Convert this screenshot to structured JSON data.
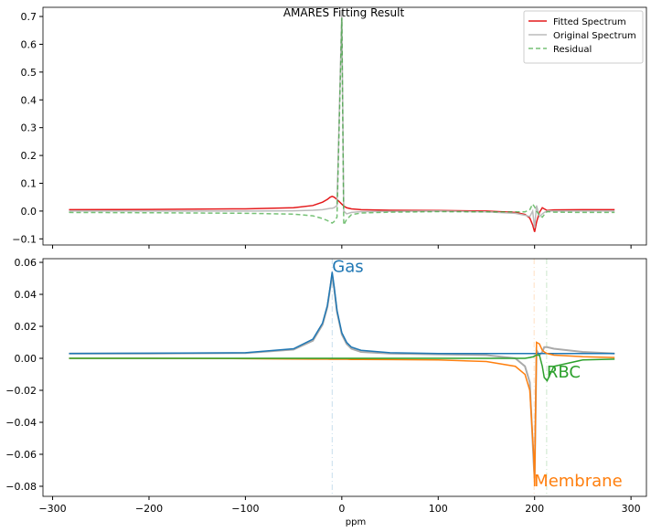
{
  "chart_data": [
    {
      "type": "line",
      "title": "AMARES Fitting Result",
      "x": [
        -283,
        -200,
        -100,
        -50,
        -30,
        -20,
        -15,
        -12,
        -10,
        -8,
        -5,
        0,
        2,
        5,
        10,
        20,
        50,
        100,
        150,
        180,
        190,
        195,
        198,
        200,
        202,
        205,
        208,
        210,
        213,
        220,
        250,
        283
      ],
      "series": [
        {
          "name": "Fitted Spectrum",
          "color": "#e41a1c",
          "style": "solid",
          "values": [
            0.005,
            0.006,
            0.008,
            0.012,
            0.02,
            0.032,
            0.042,
            0.05,
            0.053,
            0.05,
            0.042,
            0.025,
            0.018,
            0.012,
            0.008,
            0.005,
            0.003,
            0.002,
            0.0,
            -0.005,
            -0.012,
            -0.025,
            -0.05,
            -0.075,
            -0.04,
            -0.005,
            0.012,
            0.008,
            0.002,
            0.004,
            0.005,
            0.005
          ]
        },
        {
          "name": "Original Spectrum",
          "color": "#bbbbbb",
          "style": "solid",
          "values": [
            0.0,
            0.0,
            0.0,
            0.001,
            0.003,
            0.005,
            0.008,
            0.01,
            0.01,
            0.012,
            0.02,
            0.72,
            0.0,
            -0.01,
            -0.005,
            -0.002,
            -0.001,
            0.0,
            -0.003,
            -0.008,
            -0.015,
            -0.02,
            0.0,
            -0.06,
            0.02,
            -0.02,
            -0.01,
            -0.005,
            0.0,
            0.0,
            0.0,
            0.0
          ]
        },
        {
          "name": "Residual",
          "color": "#2ca02c",
          "style": "dashed",
          "values": [
            -0.005,
            -0.006,
            -0.008,
            -0.011,
            -0.017,
            -0.027,
            -0.034,
            -0.04,
            -0.043,
            -0.038,
            -0.022,
            0.695,
            -0.05,
            -0.03,
            -0.013,
            -0.007,
            -0.004,
            -0.002,
            -0.003,
            -0.003,
            -0.003,
            0.005,
            0.025,
            0.015,
            0.0,
            -0.015,
            -0.022,
            -0.013,
            -0.002,
            -0.004,
            -0.005,
            -0.005
          ]
        }
      ],
      "xlim": [
        -310,
        316
      ],
      "ylim": [
        -0.122,
        0.733
      ],
      "xticks": [
        -300,
        -200,
        -100,
        0,
        100,
        200,
        300
      ],
      "yticks": [
        {
          "value": -0.1,
          "label": "−0.1"
        },
        {
          "value": 0.0,
          "label": "0.0"
        },
        0.1,
        0.2,
        0.3,
        0.4,
        0.5,
        0.6,
        0.7
      ],
      "legend": "upper right"
    },
    {
      "type": "line",
      "xlabel": "ppm",
      "x": [
        -283,
        -200,
        -100,
        -50,
        -30,
        -20,
        -15,
        -12,
        -10,
        -8,
        -5,
        0,
        5,
        10,
        20,
        50,
        100,
        150,
        180,
        190,
        195,
        197,
        199,
        200,
        202,
        205,
        208,
        210,
        213,
        220,
        250,
        283
      ],
      "series": [
        {
          "color": "#aaaaaa",
          "style": "solid",
          "values": [
            0.003,
            0.003,
            0.0033,
            0.0055,
            0.011,
            0.021,
            0.032,
            0.044,
            0.052,
            0.044,
            0.029,
            0.015,
            0.009,
            0.006,
            0.004,
            0.003,
            0.0025,
            0.002,
            0.0,
            -0.005,
            -0.015,
            -0.04,
            -0.065,
            -0.075,
            0.005,
            0.002,
            0.004,
            0.007,
            0.007,
            0.006,
            0.004,
            0.003
          ]
        },
        {
          "name": "Gas",
          "color": "#1f77b4",
          "style": "solid",
          "marker_x": -10,
          "label_y": 0.054,
          "values": [
            0.003,
            0.0032,
            0.0035,
            0.006,
            0.012,
            0.022,
            0.033,
            0.045,
            0.054,
            0.045,
            0.03,
            0.016,
            0.01,
            0.007,
            0.005,
            0.0035,
            0.003,
            0.003,
            0.003,
            0.003,
            0.003,
            0.003,
            0.003,
            0.003,
            0.003,
            0.003,
            0.003,
            0.003,
            0.003,
            0.003,
            0.003,
            0.003
          ]
        },
        {
          "name": "Membrane",
          "color": "#ff7f0e",
          "style": "solid",
          "marker_x": 199.5,
          "label_y": -0.08,
          "values": [
            0.0,
            0.0,
            -0.0002,
            -0.0004,
            -0.0005,
            -0.0005,
            -0.0005,
            -0.0006,
            -0.0006,
            -0.0006,
            -0.0006,
            -0.0006,
            -0.0006,
            -0.0007,
            -0.0007,
            -0.0008,
            -0.001,
            -0.002,
            -0.005,
            -0.01,
            -0.02,
            -0.04,
            -0.06,
            -0.08,
            0.01,
            0.009,
            0.005,
            0.004,
            0.003,
            0.002,
            0.001,
            0.0005
          ]
        },
        {
          "name": "RBC",
          "color": "#2ca02c",
          "style": "solid",
          "marker_x": 212.5,
          "label_y": -0.012,
          "values": [
            0.0,
            0.0,
            0.0,
            0.0,
            0.0,
            0.0,
            0.0,
            0.0,
            0.0,
            0.0,
            0.0,
            0.0,
            0.0,
            0.0,
            0.0,
            0.0,
            0.0,
            0.0,
            0.0,
            0.0,
            0.0005,
            0.0008,
            0.001,
            0.0015,
            0.002,
            0.002,
            -0.005,
            -0.012,
            -0.014,
            -0.005,
            -0.001,
            -0.0005
          ]
        }
      ],
      "xlim": [
        -310,
        316
      ],
      "ylim": [
        -0.0863,
        0.0623
      ],
      "xticks": [
        {
          "value": -300,
          "label": "−300"
        },
        {
          "value": -200,
          "label": "−200"
        },
        {
          "value": -100,
          "label": "−100"
        },
        0,
        100,
        200,
        300
      ],
      "yticks": [
        {
          "value": -0.08,
          "label": "−0.08"
        },
        {
          "value": -0.06,
          "label": "−0.06"
        },
        {
          "value": -0.04,
          "label": "−0.04"
        },
        {
          "value": -0.02,
          "label": "−0.02"
        },
        {
          "value": 0.0,
          "label": "0.00"
        },
        0.02,
        0.04,
        0.06
      ]
    }
  ]
}
